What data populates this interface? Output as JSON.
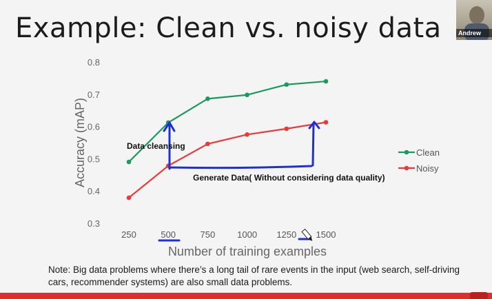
{
  "slide": {
    "title": "Example: Clean vs. noisy data",
    "note": "Note: Big data problems where there’s a long tail of rare events in the input (web search, self-driving cars, recommender systems) are also small data problems."
  },
  "video": {
    "participant_name": "Andrew"
  },
  "annotations": {
    "data_cleansing": "Data cleansing",
    "generate_data": "Generate Data( Without considering data quality)",
    "ink_color": "#1f2fd6"
  },
  "chart_data": {
    "type": "line",
    "x": [
      250,
      500,
      750,
      1000,
      1250,
      1500
    ],
    "xlabel": "Number of training examples",
    "ylabel": "Accuracy (mAP)",
    "ylim": [
      0.3,
      0.8
    ],
    "yticks": [
      "0.3",
      "0.4",
      "0.5",
      "0.6",
      "0.7",
      "0.8"
    ],
    "xticks": [
      "250",
      "500",
      "750",
      "1000",
      "1250",
      "1500"
    ],
    "grid": false,
    "legend": "right",
    "series": [
      {
        "name": "Clean",
        "color": "#1a9a5e",
        "values": [
          0.49,
          0.612,
          0.686,
          0.698,
          0.73,
          0.74
        ]
      },
      {
        "name": "Noisy",
        "color": "#ee3838",
        "values": [
          0.379,
          0.478,
          0.546,
          0.575,
          0.593,
          0.613
        ]
      }
    ]
  }
}
